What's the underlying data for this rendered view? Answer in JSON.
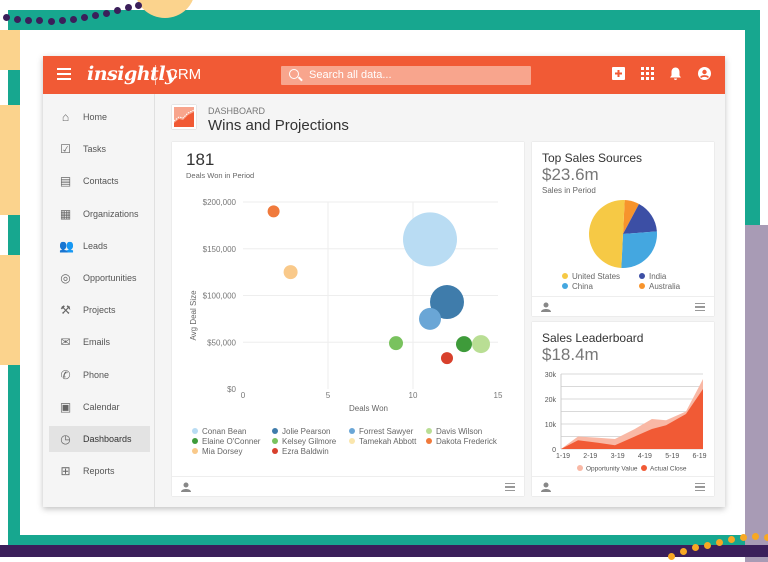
{
  "app": {
    "logo": "insightly",
    "product": "CRM",
    "search_placeholder": "Search all data..."
  },
  "header_icons": [
    "add-icon",
    "apps-grid-icon",
    "bell-icon",
    "account-icon"
  ],
  "sidebar": {
    "items": [
      {
        "label": "Home",
        "icon": "home-icon"
      },
      {
        "label": "Tasks",
        "icon": "tasks-icon"
      },
      {
        "label": "Contacts",
        "icon": "contacts-icon"
      },
      {
        "label": "Organizations",
        "icon": "organizations-icon"
      },
      {
        "label": "Leads",
        "icon": "leads-icon"
      },
      {
        "label": "Opportunities",
        "icon": "opportunities-icon"
      },
      {
        "label": "Projects",
        "icon": "projects-icon"
      },
      {
        "label": "Emails",
        "icon": "email-icon"
      },
      {
        "label": "Phone",
        "icon": "phone-icon"
      },
      {
        "label": "Calendar",
        "icon": "calendar-icon"
      },
      {
        "label": "Dashboards",
        "icon": "dashboard-icon",
        "active": true
      },
      {
        "label": "Reports",
        "icon": "reports-icon"
      }
    ]
  },
  "page": {
    "breadcrumb": "DASHBOARD",
    "title": "Wins and Projections"
  },
  "colors": {
    "brand": "#f15a35",
    "teal": "#17a78f"
  },
  "deals_card": {
    "value": "181",
    "subtitle": "Deals Won in Period"
  },
  "sources_card": {
    "title": "Top Sales Sources",
    "value": "$23.6m",
    "subtitle": "Sales in Period"
  },
  "leader_card": {
    "title": "Sales Leaderboard",
    "value": "$18.4m"
  },
  "chart_data": [
    {
      "type": "scatter",
      "xlabel": "Deals Won",
      "ylabel": "Avg Deal Size",
      "xlim": [
        0,
        15
      ],
      "ylim": [
        0,
        200000
      ],
      "xticks": [
        "0",
        "5",
        "10",
        "15"
      ],
      "yticks": [
        "$0",
        "$50,000",
        "$100,000",
        "$150,000",
        "$200,000"
      ],
      "grid": true,
      "legend": "bottom",
      "series": [
        {
          "name": "Conan Bean",
          "color": "#b9dcf3",
          "x": 11,
          "y": 160000,
          "size": 27
        },
        {
          "name": "Jolie Pearson",
          "color": "#3f7cab",
          "x": 12,
          "y": 93000,
          "size": 17
        },
        {
          "name": "Forrest Sawyer",
          "color": "#6aa6d6",
          "x": 11,
          "y": 75000,
          "size": 11
        },
        {
          "name": "Davis Wilson",
          "color": "#b9de94",
          "x": 14,
          "y": 48000,
          "size": 9
        },
        {
          "name": "Elaine O'Conner",
          "color": "#3e9b3a",
          "x": 13,
          "y": 48000,
          "size": 8
        },
        {
          "name": "Kelsey Gilmore",
          "color": "#79c25e",
          "x": 9,
          "y": 49000,
          "size": 7
        },
        {
          "name": "Tamekah Abbott",
          "color": "#fae6ad"
        },
        {
          "name": "Dakota Frederick",
          "color": "#f07a3c",
          "x": 1.8,
          "y": 190000,
          "size": 6
        },
        {
          "name": "Mia Dorsey",
          "color": "#f9c98a",
          "x": 2.8,
          "y": 125000,
          "size": 7
        },
        {
          "name": "Ezra Baldwin",
          "color": "#d8402c",
          "x": 12,
          "y": 33000,
          "size": 6
        }
      ]
    },
    {
      "type": "pie",
      "legend": "bottom",
      "slices": [
        {
          "name": "United States",
          "value": 50,
          "color": "#f6c945"
        },
        {
          "name": "China",
          "value": 27,
          "color": "#44a7e0"
        },
        {
          "name": "India",
          "value": 16,
          "color": "#3c4fa5"
        },
        {
          "name": "Australia",
          "value": 7,
          "color": "#f7942c"
        }
      ]
    },
    {
      "type": "area",
      "categories": [
        "1-19",
        "2-19",
        "3-19",
        "4-19",
        "5-19",
        "6-19"
      ],
      "ylim": [
        0,
        30000
      ],
      "yticks": [
        "0",
        "10k",
        "20k",
        "30k"
      ],
      "legend": "bottom",
      "x": [
        0,
        0.6,
        1.3,
        1.9,
        2.6,
        3.2,
        3.7,
        4.4,
        5.0
      ],
      "series": [
        {
          "name": "Opportunity Value",
          "color": "#f9b8a5",
          "values": [
            0,
            5000,
            4500,
            4000,
            8000,
            12000,
            11500,
            15000,
            28000
          ]
        },
        {
          "name": "Actual Close",
          "color": "#f15a35",
          "values": [
            0,
            3500,
            2500,
            1500,
            5000,
            8000,
            9500,
            14000,
            24000
          ]
        }
      ]
    }
  ]
}
